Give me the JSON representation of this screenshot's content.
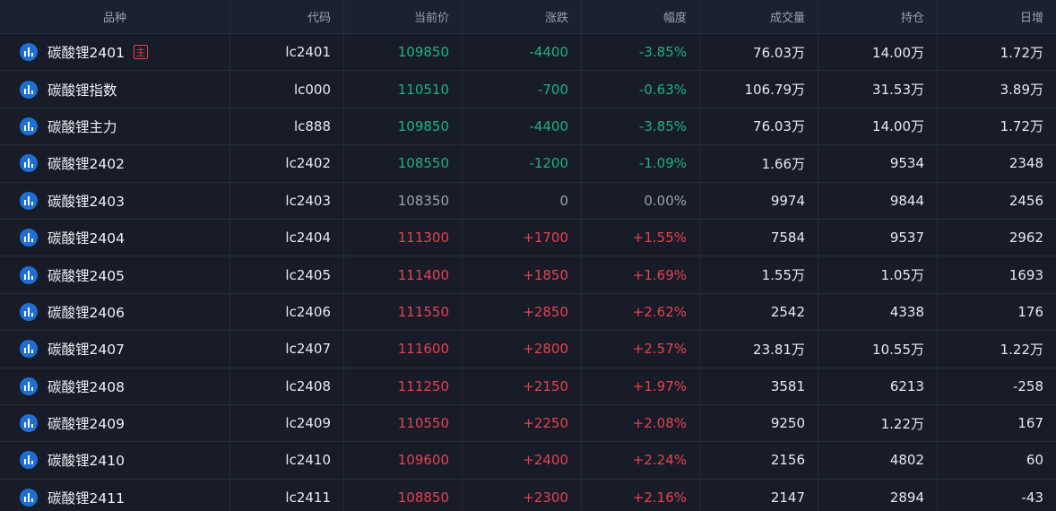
{
  "colors": {
    "up": "#e8404f",
    "down": "#1bb37f",
    "flat": "#9aa1ad",
    "icon": "#1d6fd6",
    "background": "#161b26"
  },
  "header": {
    "name": "品种",
    "code": "代码",
    "price": "当前价",
    "change": "涨跌",
    "pct": "幅度",
    "volume": "成交量",
    "open_interest": "持仓",
    "daily_change": "日增"
  },
  "row_icon": "bar-chart-icon",
  "rows": [
    {
      "name": "碳酸锂2401",
      "badge": "主",
      "code": "lc2401",
      "price": "109850",
      "change": "-4400",
      "pct": "-3.85%",
      "volume": "76.03万",
      "oi": "14.00万",
      "day": "1.72万",
      "dir": "down"
    },
    {
      "name": "碳酸锂指数",
      "badge": "",
      "code": "lc000",
      "price": "110510",
      "change": "-700",
      "pct": "-0.63%",
      "volume": "106.79万",
      "oi": "31.53万",
      "day": "3.89万",
      "dir": "down"
    },
    {
      "name": "碳酸锂主力",
      "badge": "",
      "code": "lc888",
      "price": "109850",
      "change": "-4400",
      "pct": "-3.85%",
      "volume": "76.03万",
      "oi": "14.00万",
      "day": "1.72万",
      "dir": "down"
    },
    {
      "name": "碳酸锂2402",
      "badge": "",
      "code": "lc2402",
      "price": "108550",
      "change": "-1200",
      "pct": "-1.09%",
      "volume": "1.66万",
      "oi": "9534",
      "day": "2348",
      "dir": "down"
    },
    {
      "name": "碳酸锂2403",
      "badge": "",
      "code": "lc2403",
      "price": "108350",
      "change": "0",
      "pct": "0.00%",
      "volume": "9974",
      "oi": "9844",
      "day": "2456",
      "dir": "flat"
    },
    {
      "name": "碳酸锂2404",
      "badge": "",
      "code": "lc2404",
      "price": "111300",
      "change": "+1700",
      "pct": "+1.55%",
      "volume": "7584",
      "oi": "9537",
      "day": "2962",
      "dir": "up"
    },
    {
      "name": "碳酸锂2405",
      "badge": "",
      "code": "lc2405",
      "price": "111400",
      "change": "+1850",
      "pct": "+1.69%",
      "volume": "1.55万",
      "oi": "1.05万",
      "day": "1693",
      "dir": "up"
    },
    {
      "name": "碳酸锂2406",
      "badge": "",
      "code": "lc2406",
      "price": "111550",
      "change": "+2850",
      "pct": "+2.62%",
      "volume": "2542",
      "oi": "4338",
      "day": "176",
      "dir": "up"
    },
    {
      "name": "碳酸锂2407",
      "badge": "",
      "code": "lc2407",
      "price": "111600",
      "change": "+2800",
      "pct": "+2.57%",
      "volume": "23.81万",
      "oi": "10.55万",
      "day": "1.22万",
      "dir": "up"
    },
    {
      "name": "碳酸锂2408",
      "badge": "",
      "code": "lc2408",
      "price": "111250",
      "change": "+2150",
      "pct": "+1.97%",
      "volume": "3581",
      "oi": "6213",
      "day": "-258",
      "dir": "up"
    },
    {
      "name": "碳酸锂2409",
      "badge": "",
      "code": "lc2409",
      "price": "110550",
      "change": "+2250",
      "pct": "+2.08%",
      "volume": "9250",
      "oi": "1.22万",
      "day": "167",
      "dir": "up"
    },
    {
      "name": "碳酸锂2410",
      "badge": "",
      "code": "lc2410",
      "price": "109600",
      "change": "+2400",
      "pct": "+2.24%",
      "volume": "2156",
      "oi": "4802",
      "day": "60",
      "dir": "up"
    },
    {
      "name": "碳酸锂2411",
      "badge": "",
      "code": "lc2411",
      "price": "108850",
      "change": "+2300",
      "pct": "+2.16%",
      "volume": "2147",
      "oi": "2894",
      "day": "-43",
      "dir": "up"
    }
  ]
}
